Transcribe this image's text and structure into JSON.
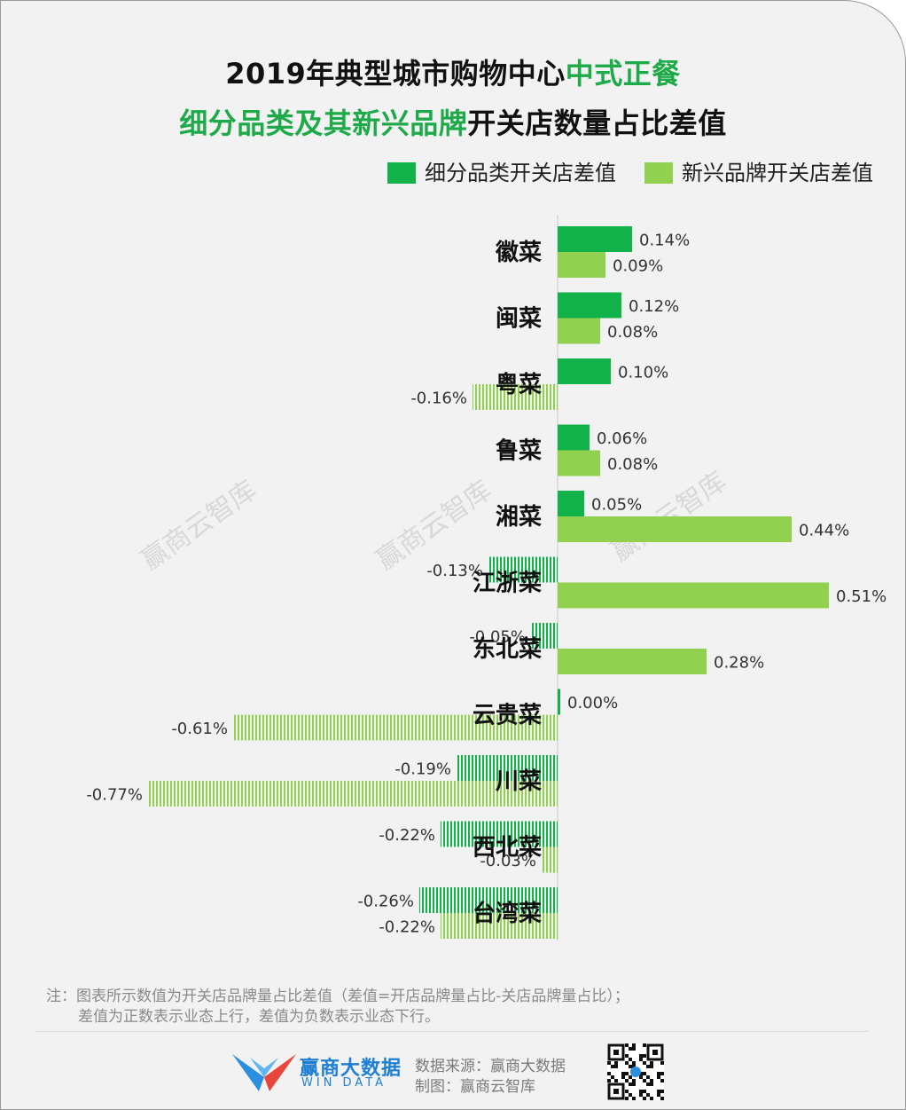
{
  "title": {
    "line1_black": "2019年典型城市购物中心",
    "line1_green": "中式正餐",
    "line2_green": "细分品类及其新兴品牌",
    "line2_black": "开关店数量占比差值"
  },
  "legend": {
    "series1": "细分品类开关店差值",
    "series2": "新兴品牌开关店差值"
  },
  "colors": {
    "series1": "#12b24a",
    "series2": "#92d050",
    "title_green": "#1faa4a",
    "brand_blue": "#1e7fd2"
  },
  "watermark": "赢商云智库",
  "chart_data": {
    "type": "bar",
    "orientation": "horizontal",
    "categories": [
      "徽菜",
      "闽菜",
      "粤菜",
      "鲁菜",
      "湘菜",
      "江浙菜",
      "东北菜",
      "云贵菜",
      "川菜",
      "西北菜",
      "台湾菜"
    ],
    "series": [
      {
        "name": "细分品类开关店差值",
        "values": [
          0.14,
          0.12,
          0.1,
          0.06,
          0.05,
          -0.13,
          -0.05,
          0.0,
          -0.19,
          -0.22,
          -0.26
        ],
        "labels": [
          "0.14%",
          "0.12%",
          "0.10%",
          "0.06%",
          "0.05%",
          "-0.13%",
          "-0.05%",
          "0.00%",
          "-0.19%",
          "-0.22%",
          "-0.26%"
        ]
      },
      {
        "name": "新兴品牌开关店差值",
        "values": [
          0.09,
          0.08,
          -0.16,
          0.08,
          0.44,
          0.51,
          0.28,
          -0.61,
          -0.77,
          -0.03,
          -0.22
        ],
        "labels": [
          "0.09%",
          "0.08%",
          "-0.16%",
          "0.08%",
          "0.44%",
          "0.51%",
          "0.28%",
          "-0.61%",
          "-0.77%",
          "-0.03%",
          "-0.22%"
        ]
      }
    ],
    "unit": "%",
    "negative_bars_style": "striped"
  },
  "footer": {
    "note_line1": "注：图表所示数值为开关店品牌量占比差值（差值=开店品牌量占比-关店品牌量占比）；",
    "note_line2": "差值为正数表示业态上行，差值为负数表示业态下行。",
    "brand_cn": "赢商大数据",
    "brand_en": "WIN DATA",
    "source": "数据来源：赢商大数据",
    "made_by": "制图：赢商云智库"
  }
}
